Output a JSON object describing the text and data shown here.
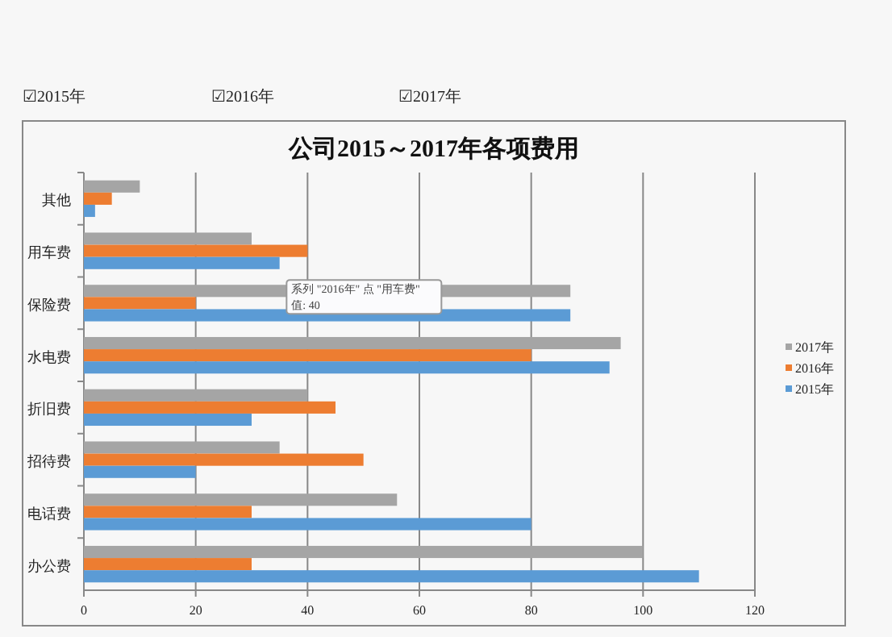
{
  "chart_data": {
    "type": "bar",
    "orientation": "horizontal",
    "title": "公司2015～2017年各项费用",
    "categories": [
      "其他",
      "用车费",
      "保险费",
      "水电费",
      "折旧费",
      "招待费",
      "电话费",
      "办公费"
    ],
    "series": [
      {
        "name": "2017年",
        "color": "#a5a5a5",
        "values": [
          10,
          30,
          87,
          96,
          40,
          35,
          56,
          100
        ]
      },
      {
        "name": "2016年",
        "color": "#ed7d31",
        "values": [
          5,
          40,
          20,
          80,
          45,
          50,
          30,
          30
        ]
      },
      {
        "name": "2015年",
        "color": "#5b9bd5",
        "values": [
          2,
          35,
          87,
          94,
          30,
          20,
          80,
          110
        ]
      }
    ],
    "xlim": [
      0,
      120
    ],
    "xticks": [
      0,
      20,
      40,
      60,
      80,
      100,
      120
    ],
    "grid": "x",
    "legend": "right",
    "annotations": [
      "☑2015年",
      "☑2016年",
      "☑2017年",
      {
        "text": "系列 \"2016年\" 点 \"用车费\"\n值: 40",
        "x": 40,
        "y": "用车费"
      }
    ]
  }
}
